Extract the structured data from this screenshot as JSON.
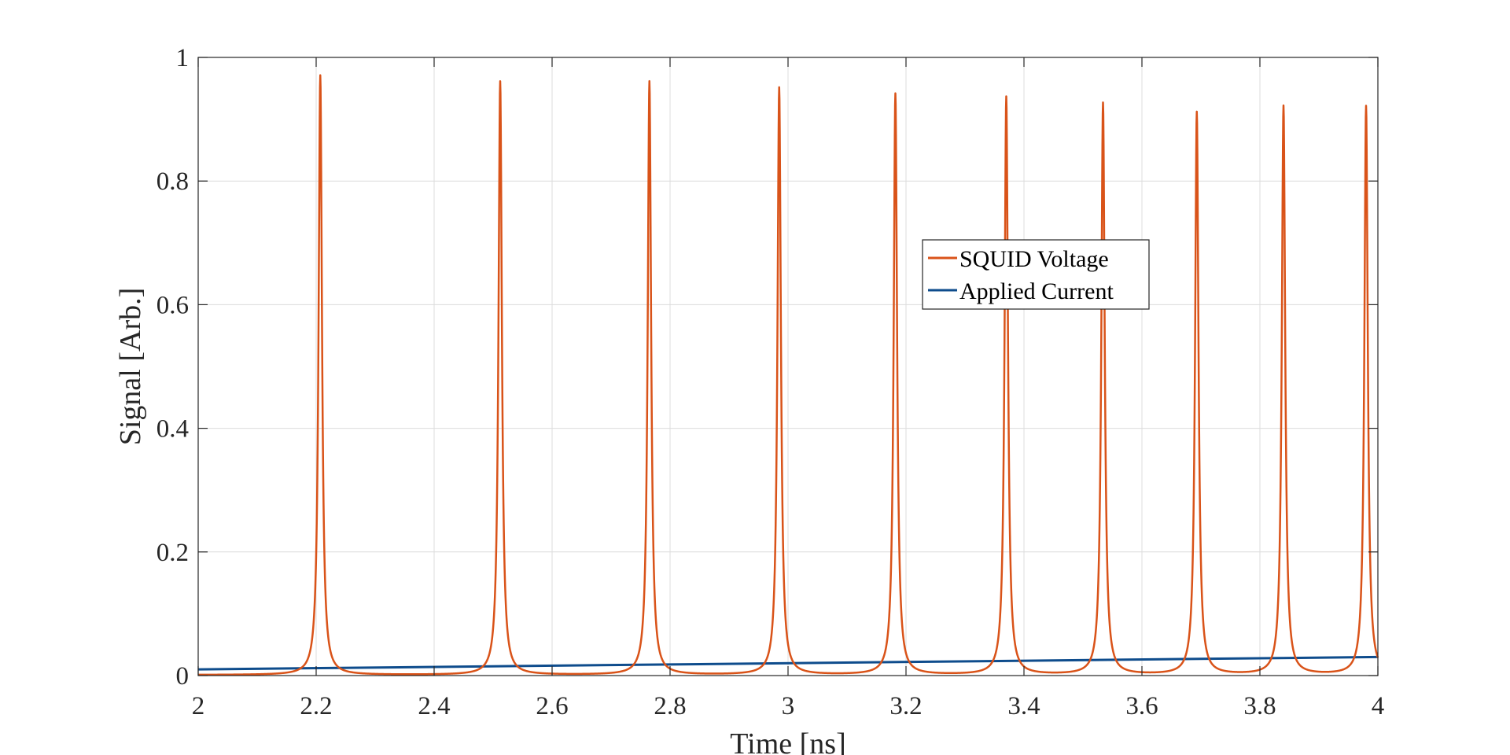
{
  "chart_data": {
    "type": "line",
    "xlabel": "Time [ns]",
    "ylabel": "Signal [Arb.]",
    "xlim": [
      2,
      4
    ],
    "ylim": [
      0,
      1
    ],
    "xticks": [
      "2",
      "2.2",
      "2.4",
      "2.6",
      "2.8",
      "3",
      "3.2",
      "3.4",
      "3.6",
      "3.8",
      "4"
    ],
    "yticks": [
      "0",
      "0.2",
      "0.4",
      "0.6",
      "0.8",
      "1"
    ],
    "grid": true,
    "legend_position": "center-right",
    "series": [
      {
        "name": "SQUID Voltage",
        "color": "#D95319",
        "peak_times": [
          2.207,
          2.512,
          2.765,
          2.985,
          3.182,
          3.37,
          3.534,
          3.693,
          3.84,
          3.98
        ],
        "peak_values": [
          0.97,
          0.96,
          0.96,
          0.95,
          0.94,
          0.935,
          0.925,
          0.91,
          0.92,
          0.92
        ],
        "baseline": 0.001
      },
      {
        "name": "Applied Current",
        "color": "#0E4C8C",
        "x": [
          2,
          4
        ],
        "values": [
          0.01,
          0.03
        ]
      }
    ]
  }
}
